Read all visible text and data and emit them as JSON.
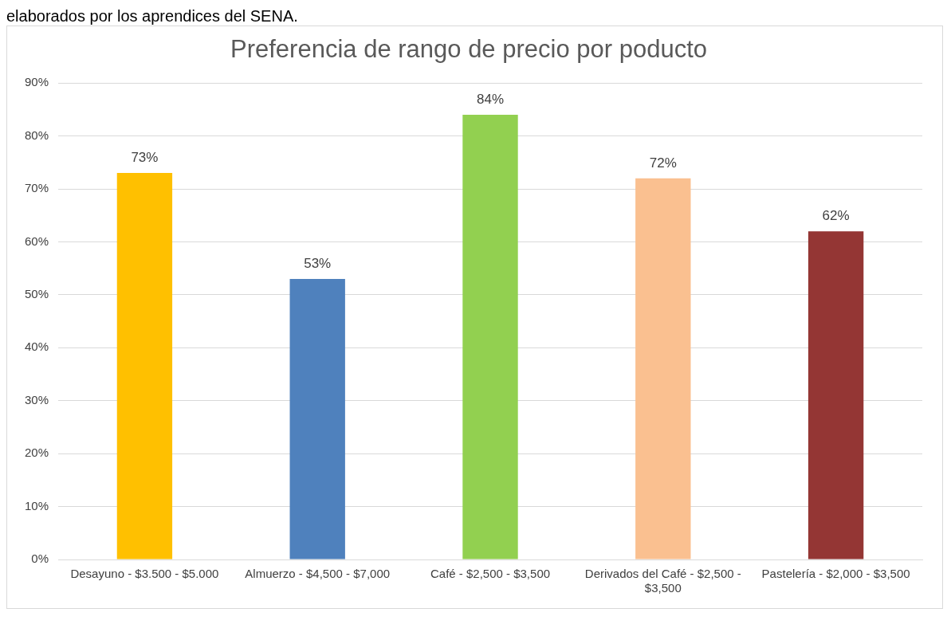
{
  "chart_data": {
    "type": "bar",
    "title": "Preferencia de rango de precio por poducto",
    "annotations": [
      "elaborados por los aprendices del SENA."
    ],
    "categories": [
      "Desayuno - $3.500 - $5.000",
      "Almuerzo - $4,500 - $7,000",
      "Café - $2,500 - $3,500",
      "Derivados del Café - $2,500 - $3,500",
      "Pastelería - $2,000 - $3,500"
    ],
    "values": [
      73,
      53,
      84,
      72,
      62
    ],
    "colors": [
      "#ffc000",
      "#4f81bd",
      "#92d050",
      "#fac090",
      "#943634"
    ],
    "value_labels": [
      "73%",
      "53%",
      "84%",
      "72%",
      "62%"
    ],
    "ylim": [
      0,
      90
    ],
    "yticks": [
      {
        "value": 0,
        "label": "0%"
      },
      {
        "value": 10,
        "label": "10%"
      },
      {
        "value": 20,
        "label": "20%"
      },
      {
        "value": 30,
        "label": "30%"
      },
      {
        "value": 40,
        "label": "40%"
      },
      {
        "value": 50,
        "label": "50%"
      },
      {
        "value": 60,
        "label": "60%"
      },
      {
        "value": 70,
        "label": "70%"
      },
      {
        "value": 80,
        "label": "80%"
      },
      {
        "value": 90,
        "label": "90%"
      }
    ],
    "grid": "y",
    "legend": false
  }
}
